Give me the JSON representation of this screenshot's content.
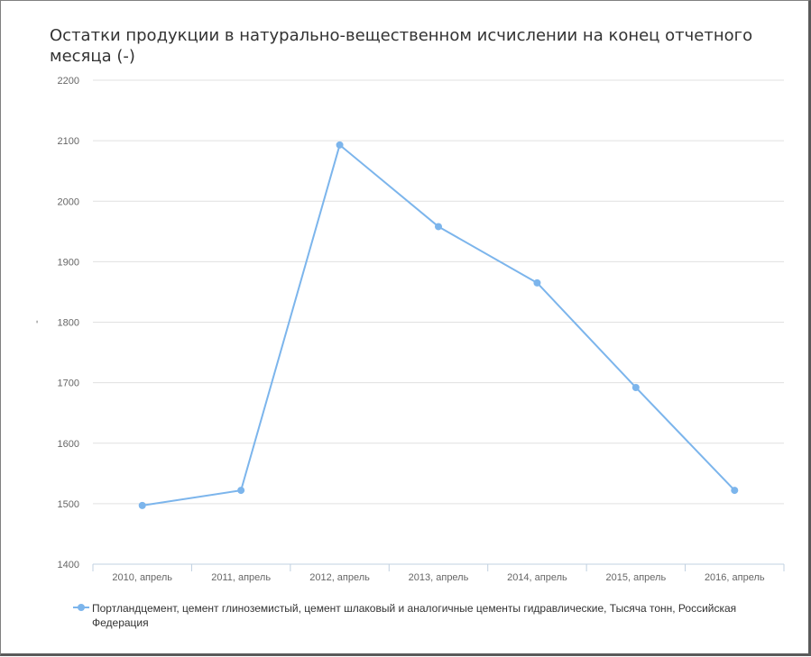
{
  "chart_data": {
    "type": "line",
    "title": "Остатки продукции в натурально-вещественном исчислении на конец отчетного месяца (-)",
    "ylabel": "-",
    "categories": [
      "2010, апрель",
      "2011, апрель",
      "2012, апрель",
      "2013, апрель",
      "2014, апрель",
      "2015, апрель",
      "2016, апрель"
    ],
    "series": [
      {
        "name": "Портландцемент, цемент глиноземистый, цемент шлаковый и аналогичные цементы гидравлические, Тысяча тонн, Российская Федерация",
        "values": [
          1497,
          1522,
          2093,
          1958,
          1865,
          1692,
          1522
        ]
      }
    ],
    "ylim": [
      1400,
      2200
    ],
    "yticks": [
      "2200",
      "2100",
      "2000",
      "1900",
      "1800",
      "1700",
      "1600",
      "1500",
      "1400"
    ],
    "grid": true,
    "legend": "bottom",
    "color": "#7cb5ec"
  }
}
